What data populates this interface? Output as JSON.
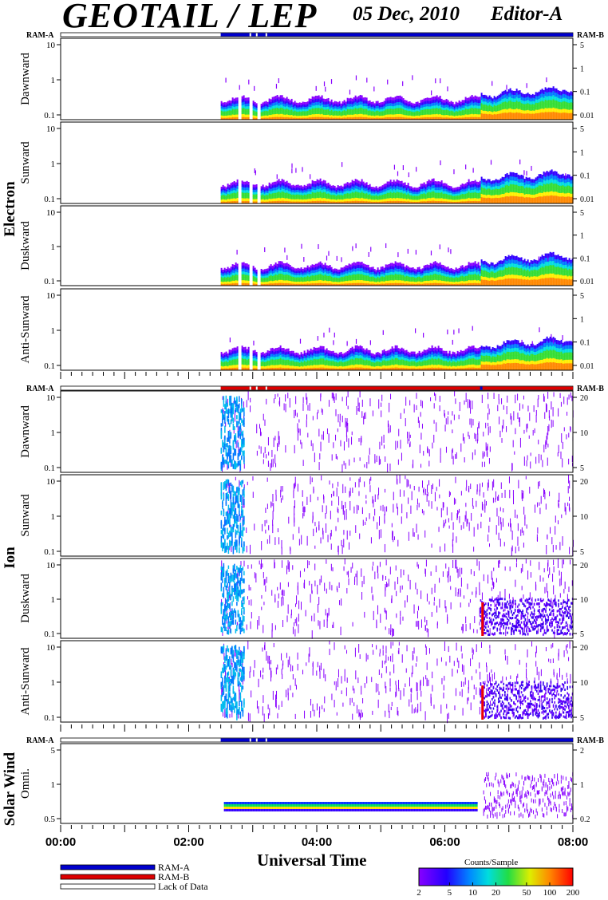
{
  "header": {
    "title": "GEOTAIL / LEP",
    "date": "05 Dec, 2010",
    "editor": "Editor-A"
  },
  "colors": {
    "ram_a": "#0000cc",
    "ram_b": "#dd0000",
    "lack_of_data": "#ffffff",
    "scatter_violet": "#8800ff"
  },
  "chart_data": {
    "type": "heatmap",
    "x_axis": {
      "title": "Universal Time",
      "range": [
        "00:00",
        "08:00"
      ],
      "tick_labels": [
        "00:00",
        "02:00",
        "04:00",
        "06:00",
        "08:00"
      ]
    },
    "data_start": "02:30",
    "ram_labels": {
      "left": "RAM-A",
      "right": "RAM-B"
    },
    "sections": [
      {
        "label": "Electron",
        "mode_bar": "blue",
        "panels": [
          {
            "label": "Dawnward",
            "left_ticks": [
              "10",
              "1",
              "0.1"
            ],
            "right_ticks": [
              "5",
              "1",
              "0.1",
              "0.01"
            ]
          },
          {
            "label": "Sunward",
            "left_ticks": [
              "10",
              "1",
              "0.1"
            ],
            "right_ticks": [
              "5",
              "1",
              "0.1",
              "0.01"
            ]
          },
          {
            "label": "Duskward",
            "left_ticks": [
              "10",
              "1",
              "0.1"
            ],
            "right_ticks": [
              "5",
              "1",
              "0.1",
              "0.01"
            ]
          },
          {
            "label": "Anti-Sunward",
            "left_ticks": [
              "10",
              "1",
              "0.1"
            ],
            "right_ticks": [
              "5",
              "1",
              "0.1",
              "0.01"
            ]
          }
        ]
      },
      {
        "label": "Ion",
        "mode_bar": "red",
        "panels": [
          {
            "label": "Dawnward",
            "left_ticks": [
              "10",
              "1",
              "0.1"
            ],
            "right_ticks": [
              "20",
              "10",
              "5"
            ]
          },
          {
            "label": "Sunward",
            "left_ticks": [
              "10",
              "1",
              "0.1"
            ],
            "right_ticks": [
              "20",
              "10",
              "5"
            ]
          },
          {
            "label": "Duskward",
            "left_ticks": [
              "10",
              "1",
              "0.1"
            ],
            "right_ticks": [
              "20",
              "10",
              "5"
            ]
          },
          {
            "label": "Anti-Sunward",
            "left_ticks": [
              "10",
              "1",
              "0.1"
            ],
            "right_ticks": [
              "20",
              "10",
              "5"
            ]
          }
        ]
      },
      {
        "label": "Solar Wind",
        "mode_bar": "blue",
        "panels": [
          {
            "label": "Omni.",
            "left_ticks": [
              "5",
              "1",
              "0.5"
            ],
            "right_ticks": [
              "2",
              "1",
              "0.2"
            ]
          }
        ]
      }
    ],
    "legend": [
      {
        "label": "RAM-A",
        "color": "#0000cc"
      },
      {
        "label": "RAM-B",
        "color": "#dd0000"
      },
      {
        "label": "Lack of Data",
        "color": "#ffffff"
      }
    ],
    "colorbar": {
      "title": "Counts/Sample",
      "ticks": [
        "2",
        "5",
        "10",
        "20",
        "50",
        "100",
        "200"
      ],
      "scale": "log"
    }
  }
}
